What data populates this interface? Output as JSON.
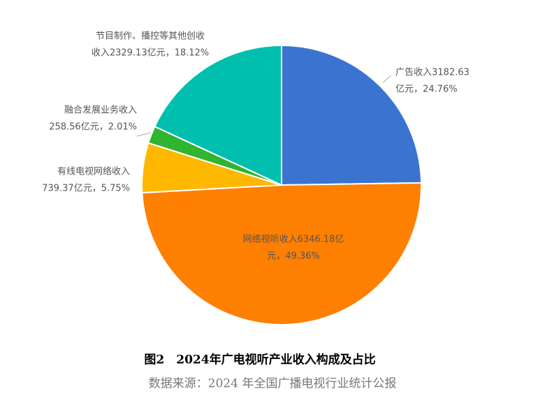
{
  "chart_data": {
    "type": "pie",
    "title": "图2　2024年广电视听产业收入构成及占比",
    "subtitle": "数据来源：2024 年全国广播电视行业统计公报",
    "categories": [
      "广告收入",
      "网络视听收入",
      "有线电视网络收入",
      "融合发展业务收入",
      "节目制作、播控等其他创收"
    ],
    "values": [
      3182.63,
      6346.18,
      739.37,
      258.56,
      2329.13
    ],
    "percentages": [
      24.76,
      49.36,
      5.75,
      2.01,
      18.12
    ],
    "value_labels": [
      [
        "广告收入3182.63",
        "亿元，24.76%"
      ],
      [
        "网络视听收入6346.18亿",
        "元，49.36%"
      ],
      [
        "有线电视网络收入",
        "739.37亿元，5.75%"
      ],
      [
        "融合发展业务收入",
        "258.56亿元，2.01%"
      ],
      [
        "节目制作、播控等其他创收",
        "收入2329.13亿元，18.12%"
      ]
    ],
    "colors": [
      "#3a74d0",
      "#ff7f00",
      "#ffb700",
      "#2fb52f",
      "#00bfae"
    ]
  }
}
